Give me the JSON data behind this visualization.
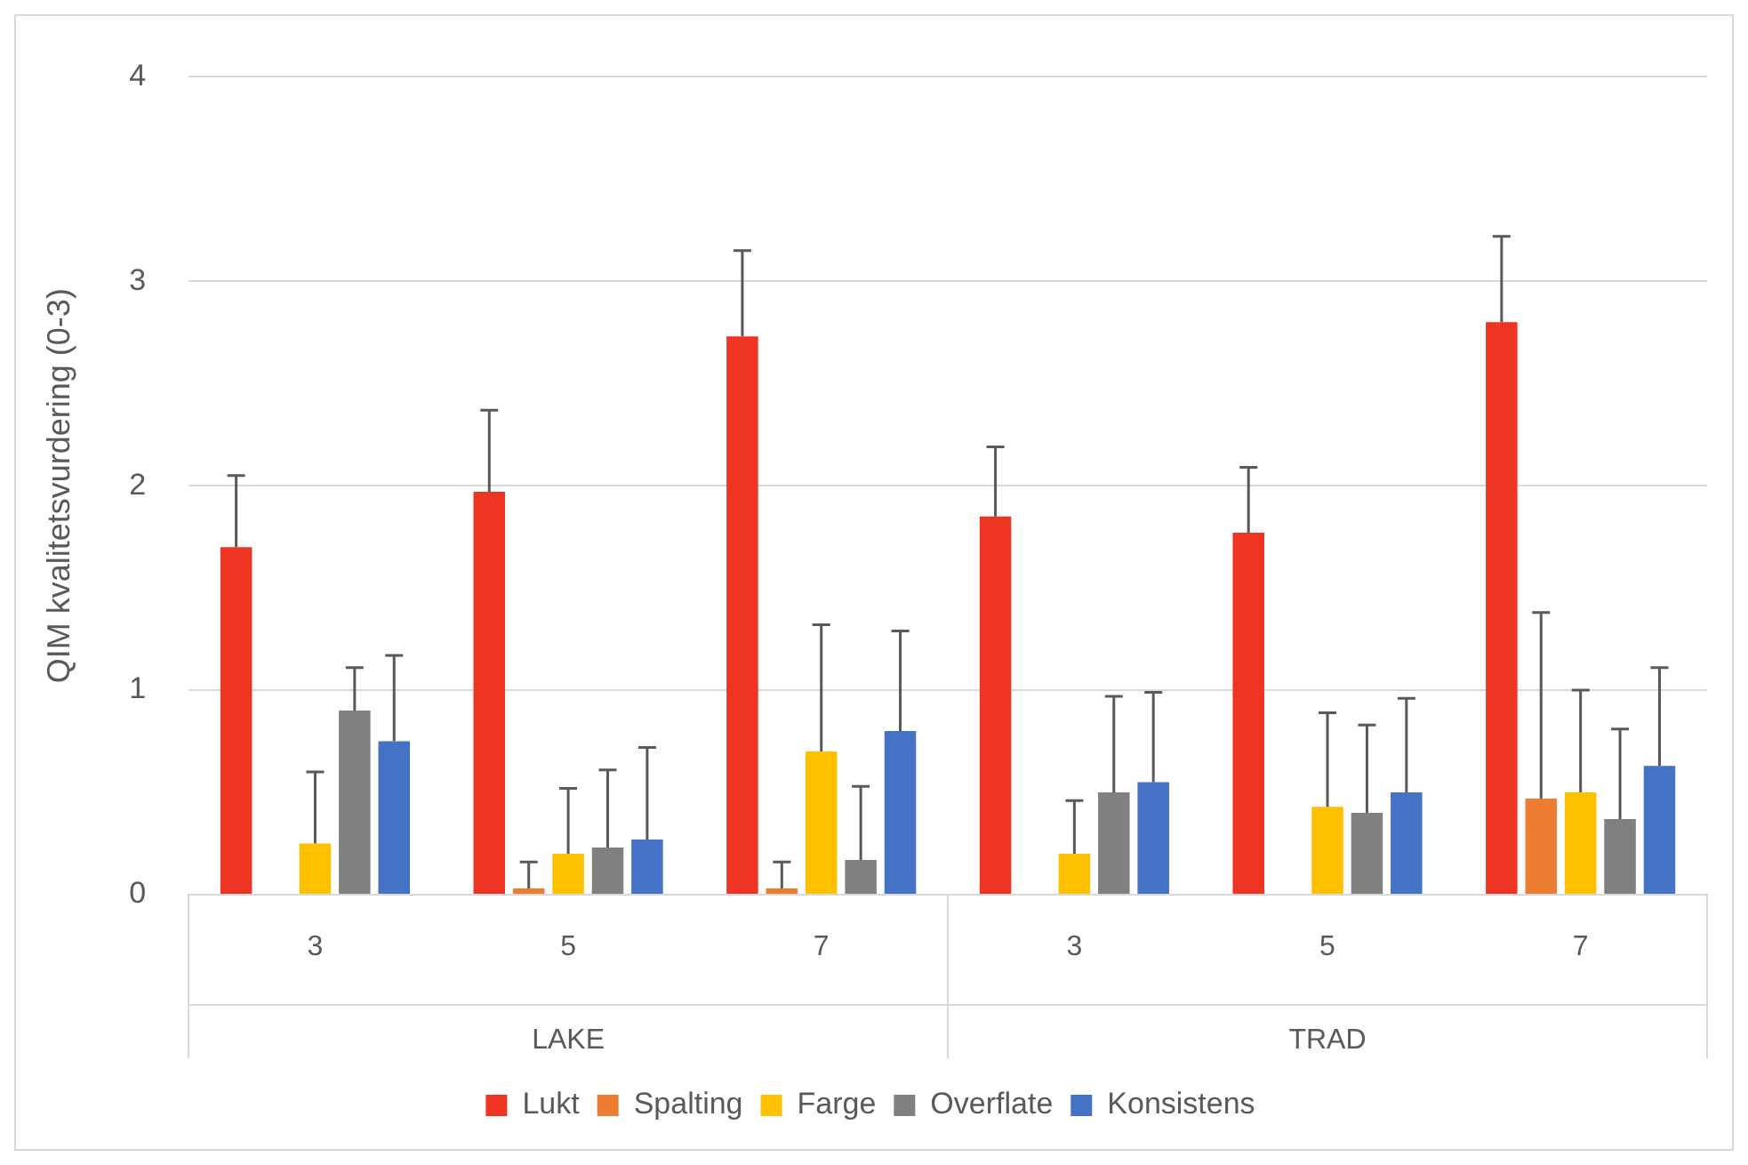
{
  "chart_data": {
    "type": "bar",
    "ylabel": "QIM kvalitetsvurdering (0-3)",
    "categories": [
      "3",
      "5",
      "7",
      "3",
      "5",
      "7"
    ],
    "annotations": [
      "LAKE",
      "TRAD"
    ],
    "series": [
      {
        "name": "Lukt",
        "color": "#ee3524",
        "values": [
          1.7,
          1.97,
          2.73,
          1.85,
          1.77,
          2.8
        ],
        "errors": [
          [
            1.7,
            2.05
          ],
          [
            1.97,
            2.37
          ],
          [
            2.73,
            3.15
          ],
          [
            1.85,
            2.19
          ],
          [
            1.77,
            2.09
          ],
          [
            2.8,
            3.22
          ]
        ]
      },
      {
        "name": "Spalting",
        "color": "#ed7d31",
        "values": [
          0,
          0.03,
          0.03,
          0,
          0,
          0.47
        ],
        "errors": [
          null,
          [
            0.03,
            0.16
          ],
          [
            0.03,
            0.16
          ],
          null,
          null,
          [
            0.47,
            1.38
          ]
        ]
      },
      {
        "name": "Farge",
        "color": "#ffc000",
        "values": [
          0.25,
          0.2,
          0.7,
          0.2,
          0.43,
          0.5
        ],
        "errors": [
          [
            0.25,
            0.6
          ],
          [
            0.2,
            0.52
          ],
          [
            0.7,
            1.32
          ],
          [
            0.2,
            0.46
          ],
          [
            0.43,
            0.89
          ],
          [
            0.5,
            1.0
          ]
        ]
      },
      {
        "name": "Overflate",
        "color": "#808080",
        "values": [
          0.9,
          0.23,
          0.17,
          0.5,
          0.4,
          0.37
        ],
        "errors": [
          [
            0.9,
            1.11
          ],
          [
            0.23,
            0.61
          ],
          [
            0.17,
            0.53
          ],
          [
            0.5,
            0.97
          ],
          [
            0.4,
            0.83
          ],
          [
            0.37,
            0.81
          ]
        ]
      },
      {
        "name": "Konsistens",
        "color": "#4472c4",
        "values": [
          0.75,
          0.27,
          0.8,
          0.55,
          0.5,
          0.63
        ],
        "errors": [
          [
            0.75,
            1.17
          ],
          [
            0.27,
            0.72
          ],
          [
            0.8,
            1.29
          ],
          [
            0.55,
            0.99
          ],
          [
            0.5,
            0.96
          ],
          [
            0.63,
            1.11
          ]
        ]
      }
    ],
    "ylim": [
      0,
      4
    ],
    "yticks": [
      0,
      1,
      2,
      3,
      4
    ],
    "grid": "y",
    "legend": "bottom"
  }
}
